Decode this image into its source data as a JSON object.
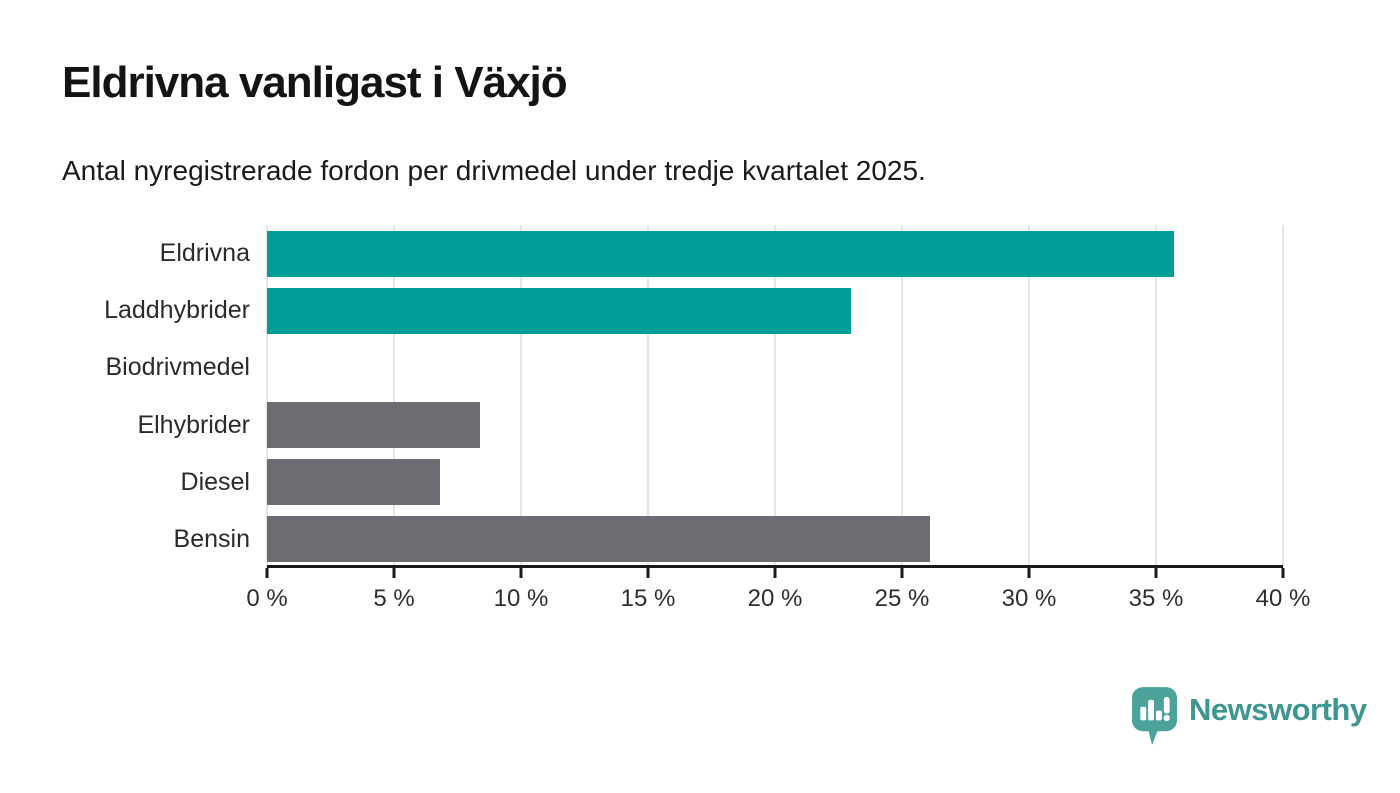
{
  "chart_data": {
    "type": "bar",
    "orientation": "horizontal",
    "title": "Eldrivna vanligast i Växjö",
    "subtitle": "Antal nyregistrerade fordon per drivmedel under tredje kvartalet 2025.",
    "categories": [
      "Eldrivna",
      "Laddhybrider",
      "Biodrivmedel",
      "Elhybrider",
      "Diesel",
      "Bensin"
    ],
    "values": [
      35.7,
      23.0,
      0,
      8.4,
      6.8,
      26.1
    ],
    "unit": "%",
    "xlim": [
      0,
      40
    ],
    "x_ticks": [
      0,
      5,
      10,
      15,
      20,
      25,
      30,
      35,
      40
    ],
    "x_tick_labels": [
      "0 %",
      "5 %",
      "10 %",
      "15 %",
      "20 %",
      "25 %",
      "30 %",
      "35 %",
      "40 %"
    ],
    "grid": true,
    "legend": "none",
    "bar_colors": [
      "#009E97",
      "#009E97",
      "#009E97",
      "#6E6C72",
      "#6E6C72",
      "#6E6C72"
    ],
    "colors": {
      "highlight_teal": "#009E97",
      "neutral_gray": "#6E6C72",
      "gridline": "#e5e5e5",
      "axis": "#1a1a1a"
    }
  },
  "footer": {
    "brand": "Newsworthy",
    "logo_bubble_color": "#4BA29B",
    "brand_text_color": "#3D968F"
  }
}
